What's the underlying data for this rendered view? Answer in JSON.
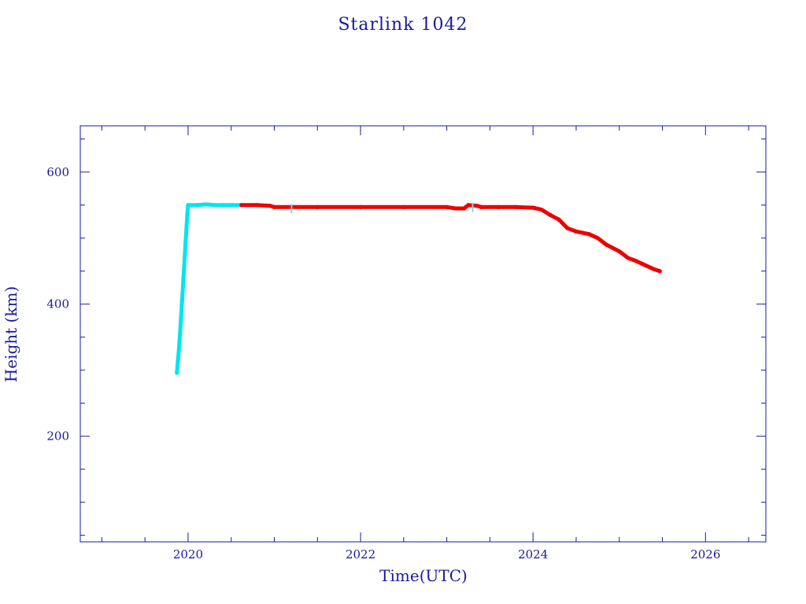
{
  "chart_data": {
    "type": "scatter",
    "title": "Starlink 1042",
    "xlabel": "Time(UTC)",
    "ylabel": "Height (km)",
    "xlim": [
      2018.75,
      2026.7
    ],
    "ylim": [
      40,
      670
    ],
    "x_major_ticks": [
      2020,
      2022,
      2024,
      2026
    ],
    "x_minor_step": 0.5,
    "y_major_ticks": [
      200,
      400,
      600
    ],
    "y_minor_step": 50,
    "grid": false,
    "legend": "none",
    "frame_color": "#1a1a9c",
    "series": [
      {
        "color": "#00e5ee",
        "values": [
          [
            2019.87,
            296
          ],
          [
            2019.89,
            325
          ],
          [
            2019.91,
            362
          ],
          [
            2019.93,
            405
          ],
          [
            2019.95,
            448
          ],
          [
            2019.97,
            492
          ],
          [
            2019.99,
            535
          ],
          [
            2020.0,
            550
          ],
          [
            2020.1,
            550
          ],
          [
            2020.2,
            551
          ],
          [
            2020.3,
            550
          ],
          [
            2020.4,
            550
          ],
          [
            2020.5,
            550
          ],
          [
            2020.62,
            550
          ]
        ]
      },
      {
        "color": "#ee0000",
        "values": [
          [
            2020.62,
            550
          ],
          [
            2020.8,
            550
          ],
          [
            2020.95,
            549
          ],
          [
            2021.0,
            547
          ],
          [
            2021.5,
            547
          ],
          [
            2022.0,
            547
          ],
          [
            2022.5,
            547
          ],
          [
            2023.0,
            547
          ],
          [
            2023.1,
            545
          ],
          [
            2023.2,
            545
          ],
          [
            2023.25,
            550
          ],
          [
            2023.35,
            549
          ],
          [
            2023.4,
            547
          ],
          [
            2023.6,
            547
          ],
          [
            2023.8,
            547
          ],
          [
            2024.0,
            546
          ],
          [
            2024.1,
            543
          ],
          [
            2024.2,
            535
          ],
          [
            2024.3,
            528
          ],
          [
            2024.4,
            515
          ],
          [
            2024.5,
            510
          ],
          [
            2024.65,
            506
          ],
          [
            2024.75,
            500
          ],
          [
            2024.85,
            490
          ],
          [
            2025.0,
            480
          ],
          [
            2025.1,
            470
          ],
          [
            2025.2,
            465
          ],
          [
            2025.3,
            459
          ],
          [
            2025.4,
            453
          ],
          [
            2025.47,
            450
          ]
        ]
      }
    ]
  }
}
